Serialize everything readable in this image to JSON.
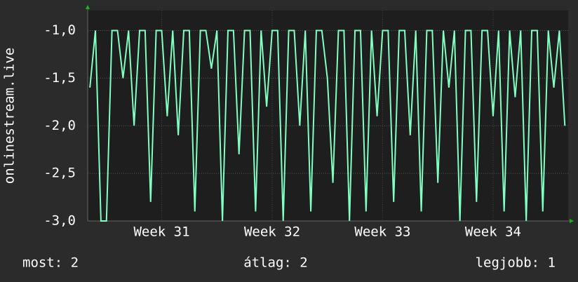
{
  "chart_data": {
    "type": "line",
    "y_label": "onlinestream.live",
    "x": [
      30.85,
      30.9,
      30.95,
      31,
      31.05,
      31.1,
      31.15,
      31.2,
      31.25,
      31.3,
      31.35,
      31.4,
      31.45,
      31.5,
      31.55,
      31.6,
      31.65,
      31.7,
      31.75,
      31.8,
      31.85,
      31.9,
      31.95,
      32,
      32.05,
      32.1,
      32.15,
      32.2,
      32.25,
      32.3,
      32.35,
      32.4,
      32.45,
      32.5,
      32.55,
      32.6,
      32.65,
      32.7,
      32.75,
      32.8,
      32.85,
      32.9,
      32.95,
      33,
      33.05,
      33.1,
      33.15,
      33.2,
      33.25,
      33.3,
      33.35,
      33.4,
      33.45,
      33.5,
      33.55,
      33.6,
      33.65,
      33.7,
      33.75,
      33.8,
      33.85,
      33.9,
      33.95,
      34,
      34.05,
      34.1,
      34.15,
      34.2,
      34.25,
      34.3,
      34.35,
      34.4,
      34.45,
      34.5,
      34.55,
      34.6,
      34.65,
      34.7,
      34.75,
      34.8,
      34.85,
      34.9,
      34.95,
      35,
      35.05,
      35.1,
      35.15
    ],
    "series": [
      {
        "color": "#80ffc0",
        "values": [
          -1.6,
          -1,
          -3,
          -3,
          -1,
          -1,
          -1.5,
          -1,
          -2,
          -1,
          -1,
          -2.8,
          -1,
          -1,
          -1.9,
          -1,
          -2.1,
          -1,
          -1,
          -2.9,
          -1,
          -1,
          -1.4,
          -1,
          -3,
          -1,
          -1,
          -2.3,
          -1,
          -1,
          -2.9,
          -1,
          -1.8,
          -1,
          -1,
          -3,
          -1,
          -1,
          -2,
          -1,
          -2.9,
          -1,
          -1,
          -1.5,
          -2.6,
          -1,
          -1,
          -3,
          -1,
          -1,
          -2.9,
          -1,
          -1.9,
          -1,
          -1,
          -2.8,
          -1,
          -1,
          -2.1,
          -1,
          -2.9,
          -1,
          -1,
          -2.6,
          -1,
          -1.6,
          -1,
          -3,
          -1,
          -1,
          -2.8,
          -1,
          -1,
          -1.9,
          -1,
          -2.9,
          -1,
          -1.7,
          -1,
          -3,
          -1,
          -1,
          -2.9,
          -1,
          -1.6,
          -1,
          -2
        ]
      }
    ],
    "xlim": [
      30.83,
      35.18
    ],
    "xticks": [
      {
        "value": 31.5,
        "label": "Week 31"
      },
      {
        "value": 32.5,
        "label": "Week 32"
      },
      {
        "value": 33.5,
        "label": "Week 33"
      },
      {
        "value": 34.5,
        "label": "Week 34"
      }
    ],
    "ylim": [
      -3,
      -0.79
    ],
    "yticks": [
      {
        "value": -3,
        "label": "-3,0"
      },
      {
        "value": -2.5,
        "label": "-2,5"
      },
      {
        "value": -2,
        "label": "-2,0"
      },
      {
        "value": -1.5,
        "label": "-1,5"
      },
      {
        "value": -1,
        "label": "-1,0"
      }
    ],
    "grid": true,
    "footer": [
      "most: 2",
      "átlag: 2",
      "legjobb: 1"
    ]
  }
}
